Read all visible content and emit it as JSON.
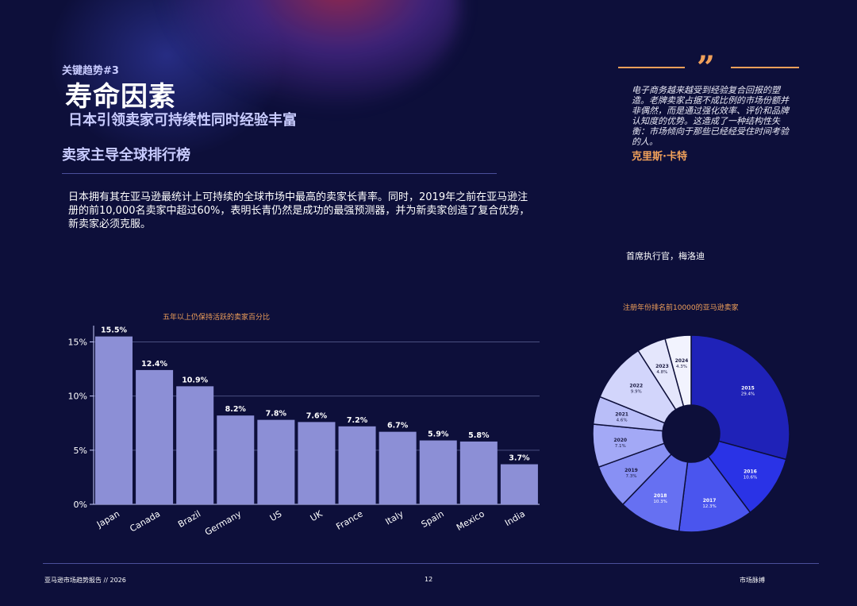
{
  "header": {
    "kicker": "关键趋势#3",
    "title": "寿命因素",
    "subtitle": "日本引领卖家可持续性同时经验丰富",
    "section": "卖家主导全球排行榜"
  },
  "body_text": "日本拥有其在亚马逊最统计上可持续的全球市场中最高的卖家长青率。同时，2019年之前在亚马逊注册的前10,000名卖家中超过60%，表明长青仍然是成功的最强预测器，并为新卖家创造了复合优势，新卖家必须克服。",
  "quote": {
    "mark": "”",
    "text": "电子商务越来越受到经验复合回报的塑造。老牌卖家占据不成比例的市场份额并非偶然，而是通过强化效率、评价和品牌认知度的优势。这造成了一种结构性失衡：市场倾向于那些已经经受住时间考验的人。",
    "author": "克里斯·卡特",
    "role": "首席执行官，梅洛迪"
  },
  "colors": {
    "background": "#0d0f3a",
    "accent": "#f0a05a",
    "bar": "#8c8fd6",
    "grid": "#4a4f80"
  },
  "chart_data": [
    {
      "type": "bar",
      "title": "五年以上仍保持活跃的卖家百分比",
      "categories": [
        "Japan",
        "Canada",
        "Brazil",
        "Germany",
        "US",
        "UK",
        "France",
        "Italy",
        "Spain",
        "Mexico",
        "India"
      ],
      "values": [
        15.5,
        12.4,
        10.9,
        8.2,
        7.8,
        7.6,
        7.2,
        6.7,
        5.9,
        5.8,
        3.7
      ],
      "data_labels": [
        "15.5%",
        "12.4%",
        "10.9%",
        "8.2%",
        "7.8%",
        "7.6%",
        "7.2%",
        "6.7%",
        "5.9%",
        "5.8%",
        "3.7%"
      ],
      "yticks": [
        0,
        5,
        10,
        15
      ],
      "ytick_labels": [
        "0%",
        "5%",
        "10%",
        "15%"
      ],
      "ylim": [
        0,
        16.5
      ],
      "grid": true
    },
    {
      "type": "pie",
      "donut": true,
      "title": "注册年份排名前10000的亚马逊卖家",
      "slices": [
        {
          "label": "2015",
          "value": 29.4,
          "text": "29.4%",
          "color": "#1f22b8"
        },
        {
          "label": "2016",
          "value": 10.6,
          "text": "10.6%",
          "color": "#2a33e6"
        },
        {
          "label": "2017",
          "value": 12.3,
          "text": "12.3%",
          "color": "#4a55ee"
        },
        {
          "label": "2018",
          "value": 10.3,
          "text": "10.3%",
          "color": "#6670f2"
        },
        {
          "label": "2019",
          "value": 7.3,
          "text": "7.3%",
          "color": "#8890f4"
        },
        {
          "label": "2020",
          "value": 7.1,
          "text": "7.1%",
          "color": "#a3a9f6"
        },
        {
          "label": "2021",
          "value": 4.6,
          "text": "4.6%",
          "color": "#b9bef8"
        },
        {
          "label": "2022",
          "value": 9.9,
          "text": "9.9%",
          "color": "#d2d5fb"
        },
        {
          "label": "2023",
          "value": 4.8,
          "text": "4.8%",
          "color": "#e4e6fc"
        },
        {
          "label": "2024",
          "value": 4.3,
          "text": "4.3%",
          "color": "#f2f3fe"
        }
      ]
    }
  ],
  "footer": {
    "left": "亚马逊市场趋势报告 // 2026",
    "page": "12",
    "right": "市场脉搏"
  }
}
